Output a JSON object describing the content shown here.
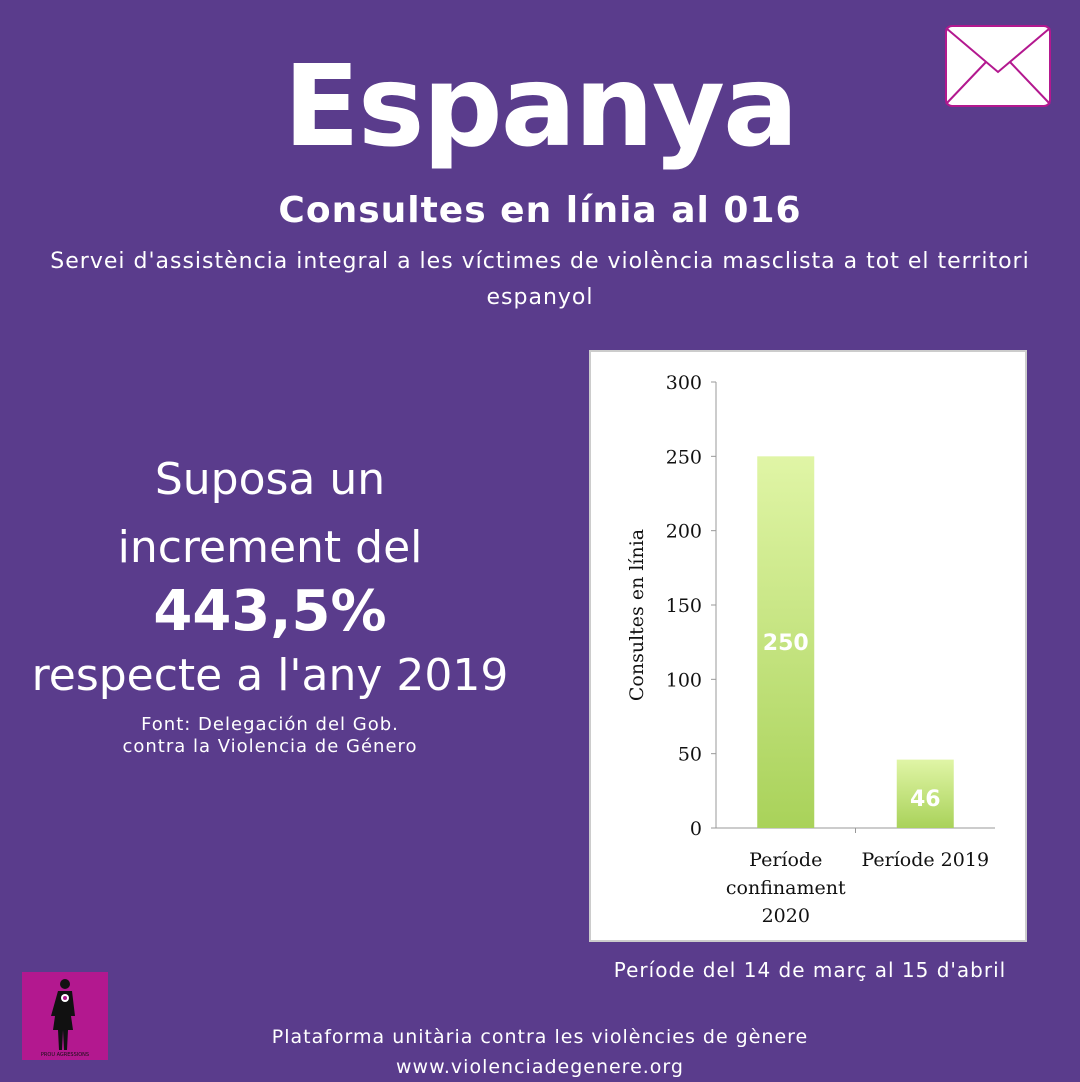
{
  "header": {
    "title": "Espanya",
    "subtitle": "Consultes en línia al 016",
    "description": "Servei d'assistència integral a les víctimes de violència masclista a tot el territori espanyol"
  },
  "stat": {
    "line1": "Suposa un",
    "line2": "increment del",
    "value": "443,5%",
    "line3": "respecte a l'any 2019"
  },
  "source": {
    "line1": "Font:  Delegación del Gob.",
    "line2": "contra la Violencia de Género"
  },
  "chart_data": {
    "type": "bar",
    "categories": [
      "Període confinament 2020",
      "Període 2019"
    ],
    "values": [
      250,
      46
    ],
    "data_labels": [
      "250",
      "46"
    ],
    "ylabel": "Consultes en línia",
    "xlabel": "",
    "ylim": [
      0,
      300
    ],
    "yticks": [
      "0",
      "50",
      "100",
      "150",
      "200",
      "250",
      "300"
    ],
    "grid": false,
    "bar_color": "#b5dc6a"
  },
  "chart_caption": "Període del 14 de març al 15 d'abril",
  "footer": {
    "org": "Plataforma unitària contra les violències de gènere",
    "url": "www.violenciadegenere.org"
  },
  "logo": {
    "text": "PROU AGRESSIONS"
  },
  "icons": {
    "mail": "mail-icon"
  }
}
